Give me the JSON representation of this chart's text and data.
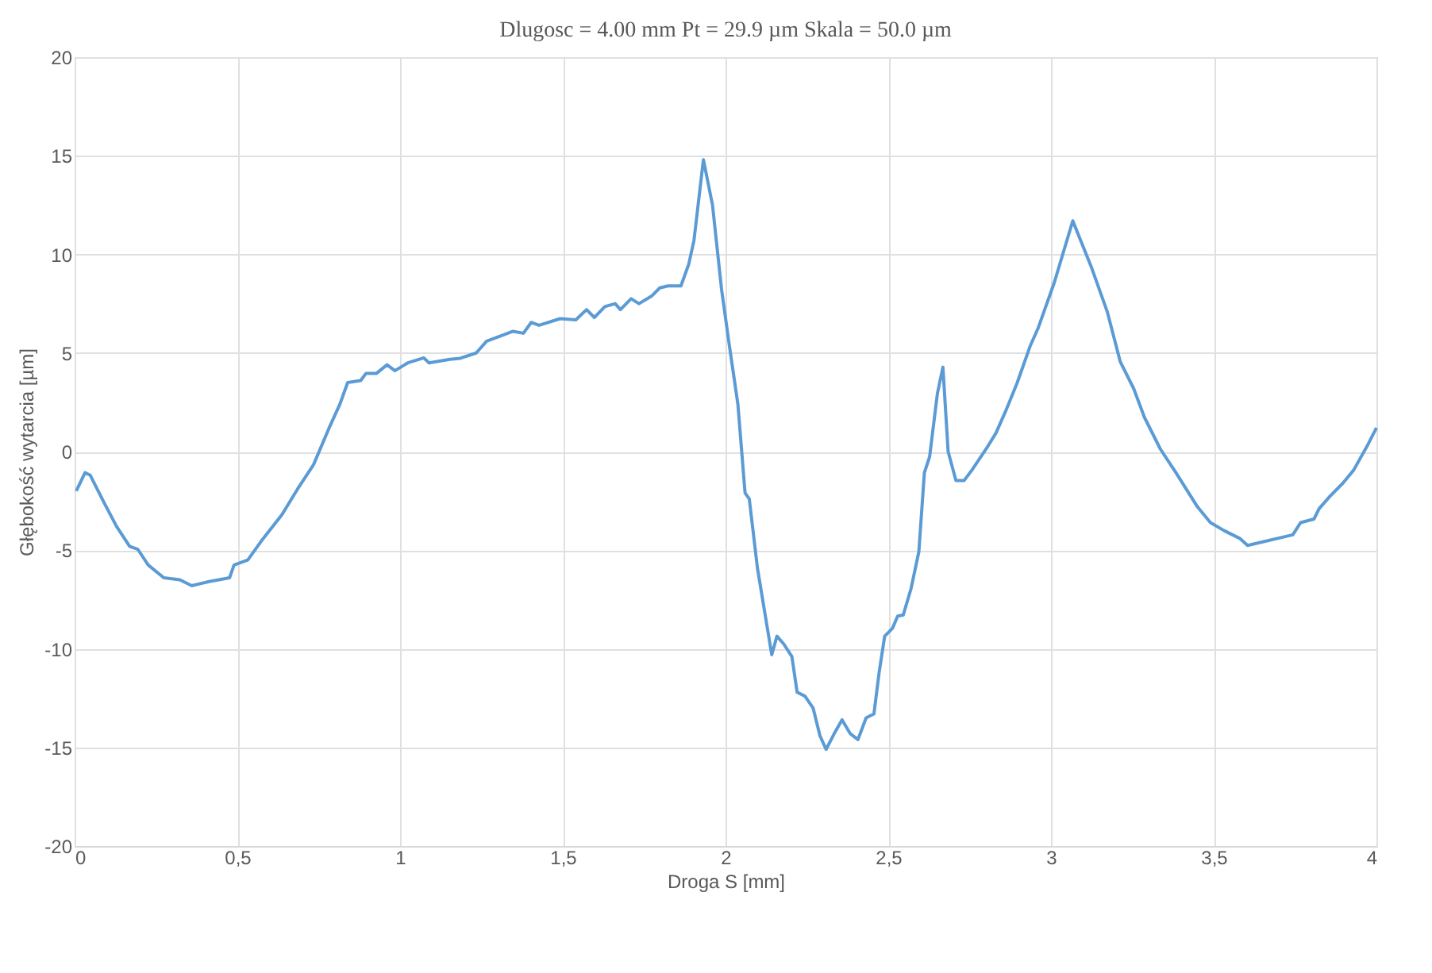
{
  "chart_data": {
    "type": "line",
    "title": "Dlugosc = 4.00 mm Pt = 29.9 µm Skala = 50.0 µm",
    "xlabel": "Droga S [mm]",
    "ylabel": "Głębokość wytarcia [µm]",
    "xlim": [
      0,
      4
    ],
    "ylim": [
      -20,
      20
    ],
    "xticks": [
      0,
      {
        "value": 0.5,
        "label": "0,5"
      },
      1,
      {
        "value": 1.5,
        "label": "1,5"
      },
      2,
      {
        "value": 2.5,
        "label": "2,5"
      },
      3,
      {
        "value": 3.5,
        "label": "3,5"
      },
      4
    ],
    "yticks": [
      -20,
      -15,
      -10,
      -5,
      0,
      5,
      10,
      15,
      20
    ],
    "grid": true,
    "marker": "none",
    "line_style": "solid",
    "series": [
      {
        "color": "#5b9bd5",
        "x": [
          0.005,
          0.032,
          0.048,
          0.089,
          0.129,
          0.169,
          0.194,
          0.226,
          0.274,
          0.323,
          0.36,
          0.411,
          0.476,
          0.49,
          0.532,
          0.573,
          0.637,
          0.685,
          0.734,
          0.782,
          0.815,
          0.839,
          0.879,
          0.895,
          0.927,
          0.96,
          0.984,
          1.024,
          1.073,
          1.089,
          1.153,
          1.185,
          1.234,
          1.266,
          1.315,
          1.347,
          1.379,
          1.403,
          1.427,
          1.492,
          1.54,
          1.573,
          1.597,
          1.629,
          1.661,
          1.677,
          1.71,
          1.734,
          1.774,
          1.798,
          1.823,
          1.863,
          1.887,
          1.903,
          1.932,
          1.96,
          1.988,
          2.012,
          2.038,
          2.06,
          2.073,
          2.098,
          2.122,
          2.142,
          2.158,
          2.179,
          2.204,
          2.22,
          2.244,
          2.269,
          2.29,
          2.309,
          2.334,
          2.358,
          2.383,
          2.407,
          2.432,
          2.456,
          2.472,
          2.489,
          2.513,
          2.529,
          2.546,
          2.57,
          2.594,
          2.611,
          2.627,
          2.651,
          2.668,
          2.684,
          2.708,
          2.733,
          2.757,
          2.806,
          2.831,
          2.863,
          2.896,
          2.936,
          2.961,
          3.01,
          3.067,
          3.124,
          3.173,
          3.213,
          3.254,
          3.287,
          3.336,
          3.384,
          3.45,
          3.49,
          3.531,
          3.58,
          3.604,
          3.743,
          3.767,
          3.808,
          3.824,
          3.857,
          3.897,
          3.93,
          3.971,
          4.0
        ],
        "values": [
          -2.0,
          -1.07,
          -1.2,
          -2.54,
          -3.8,
          -4.8,
          -4.95,
          -5.75,
          -6.4,
          -6.5,
          -6.8,
          -6.6,
          -6.4,
          -5.75,
          -5.5,
          -4.55,
          -3.2,
          -1.9,
          -0.67,
          1.2,
          2.4,
          3.5,
          3.6,
          3.96,
          3.96,
          4.4,
          4.1,
          4.5,
          4.75,
          4.5,
          4.68,
          4.73,
          5.0,
          5.6,
          5.9,
          6.1,
          6.0,
          6.55,
          6.4,
          6.74,
          6.68,
          7.2,
          6.8,
          7.35,
          7.5,
          7.2,
          7.75,
          7.5,
          7.9,
          8.3,
          8.4,
          8.4,
          9.5,
          10.7,
          14.8,
          12.5,
          8.2,
          5.35,
          2.4,
          -2.1,
          -2.4,
          -5.9,
          -8.3,
          -10.3,
          -9.36,
          -9.76,
          -10.4,
          -12.2,
          -12.4,
          -13.0,
          -14.4,
          -15.1,
          -14.3,
          -13.6,
          -14.3,
          -14.6,
          -13.5,
          -13.3,
          -11.2,
          -9.36,
          -8.96,
          -8.34,
          -8.29,
          -6.95,
          -5.08,
          -1.07,
          -0.27,
          2.94,
          4.28,
          0.0,
          -1.47,
          -1.47,
          -0.94,
          0.27,
          0.94,
          2.14,
          3.48,
          5.35,
          6.28,
          8.56,
          11.7,
          9.36,
          7.09,
          4.55,
          3.2,
          1.74,
          0.13,
          -1.07,
          -2.8,
          -3.6,
          -4.0,
          -4.4,
          -4.76,
          -4.22,
          -3.6,
          -3.42,
          -2.89,
          -2.27,
          -1.6,
          -0.94,
          0.27,
          1.2
        ]
      }
    ]
  }
}
